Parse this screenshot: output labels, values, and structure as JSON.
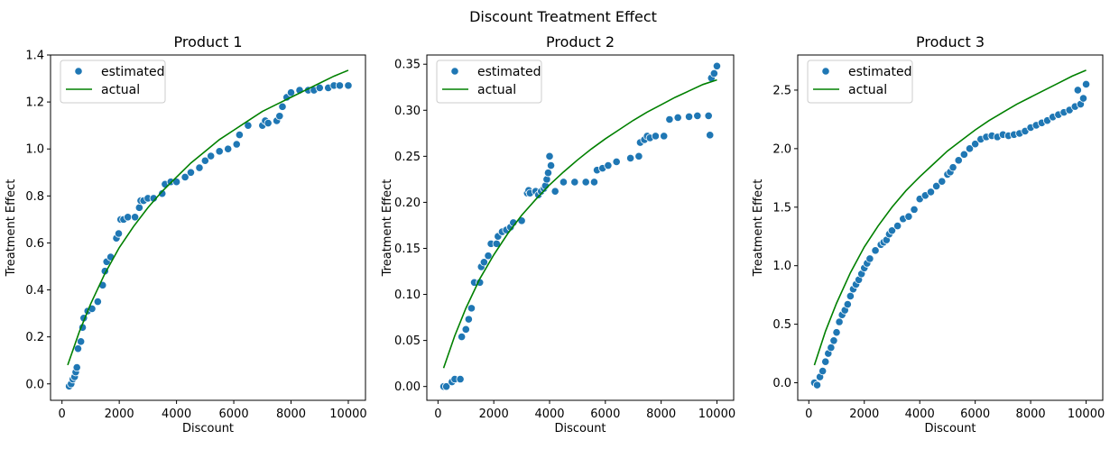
{
  "figure": {
    "title": "Discount Treatment Effect"
  },
  "colors": {
    "estimated": "#1f77b4",
    "estimated_edge": "#ffffff",
    "actual": "#008000",
    "axis": "#000000"
  },
  "chart_data": [
    {
      "type": "scatter",
      "title": "Product 1",
      "xlabel": "Discount",
      "ylabel": "Treatment Effect",
      "xlim": [
        -400,
        10600
      ],
      "ylim": [
        -0.07,
        1.4
      ],
      "xticks": [
        0,
        2000,
        4000,
        6000,
        8000,
        10000
      ],
      "xtick_labels": [
        "0",
        "2000",
        "4000",
        "6000",
        "8000",
        "10000"
      ],
      "yticks": [
        0.0,
        0.2,
        0.4,
        0.6,
        0.8,
        1.0,
        1.2,
        1.4
      ],
      "ytick_labels": [
        "0.0",
        "0.2",
        "0.4",
        "0.6",
        "0.8",
        "1.0",
        "1.2",
        "1.4"
      ],
      "legend": {
        "location": "upper-left",
        "entries": [
          "estimated",
          "actual"
        ]
      },
      "series": [
        {
          "name": "estimated",
          "kind": "scatter",
          "x": [
            250,
            320,
            380,
            440,
            480,
            520,
            560,
            660,
            720,
            760,
            900,
            1050,
            1250,
            1420,
            1500,
            1560,
            1700,
            1900,
            1980,
            2050,
            2150,
            2300,
            2550,
            2700,
            2750,
            2850,
            3000,
            3200,
            3500,
            3600,
            3800,
            4000,
            4300,
            4500,
            4800,
            5000,
            5200,
            5500,
            5800,
            6100,
            6200,
            6500,
            7000,
            7100,
            7200,
            7500,
            7600,
            7700,
            7850,
            8000,
            8300,
            8600,
            8800,
            9000,
            9300,
            9500,
            9700,
            10000
          ],
          "y": [
            -0.01,
            0.0,
            0.02,
            0.03,
            0.05,
            0.07,
            0.15,
            0.18,
            0.24,
            0.28,
            0.31,
            0.32,
            0.35,
            0.42,
            0.48,
            0.52,
            0.54,
            0.62,
            0.64,
            0.7,
            0.7,
            0.71,
            0.71,
            0.75,
            0.78,
            0.78,
            0.79,
            0.79,
            0.81,
            0.85,
            0.86,
            0.86,
            0.88,
            0.9,
            0.92,
            0.95,
            0.97,
            0.99,
            1.0,
            1.02,
            1.06,
            1.1,
            1.1,
            1.12,
            1.11,
            1.12,
            1.14,
            1.18,
            1.22,
            1.24,
            1.25,
            1.25,
            1.25,
            1.26,
            1.26,
            1.27,
            1.27,
            1.27
          ]
        },
        {
          "name": "actual",
          "kind": "line",
          "x": [
            200,
            600,
            1000,
            1500,
            2000,
            2500,
            3000,
            3500,
            4000,
            4500,
            5000,
            5500,
            6000,
            6500,
            7000,
            7500,
            8000,
            8500,
            9000,
            9500,
            10000
          ],
          "y": [
            0.08,
            0.22,
            0.34,
            0.47,
            0.58,
            0.67,
            0.75,
            0.82,
            0.88,
            0.94,
            0.99,
            1.04,
            1.08,
            1.12,
            1.16,
            1.19,
            1.22,
            1.25,
            1.28,
            1.31,
            1.335
          ]
        }
      ]
    },
    {
      "type": "scatter",
      "title": "Product 2",
      "xlabel": "Discount",
      "ylabel": "Treatment Effect",
      "xlim": [
        -400,
        10600
      ],
      "ylim": [
        -0.015,
        0.36
      ],
      "xticks": [
        0,
        2000,
        4000,
        6000,
        8000,
        10000
      ],
      "xtick_labels": [
        "0",
        "2000",
        "4000",
        "6000",
        "8000",
        "10000"
      ],
      "yticks": [
        0.0,
        0.05,
        0.1,
        0.15,
        0.2,
        0.25,
        0.3,
        0.35
      ],
      "ytick_labels": [
        "0.00",
        "0.05",
        "0.10",
        "0.15",
        "0.20",
        "0.25",
        "0.30",
        "0.35"
      ],
      "legend": {
        "location": "upper-left",
        "entries": [
          "estimated",
          "actual"
        ]
      },
      "series": [
        {
          "name": "estimated",
          "kind": "scatter",
          "x": [
            200,
            300,
            500,
            600,
            800,
            850,
            1000,
            1100,
            1200,
            1300,
            1500,
            1550,
            1650,
            1800,
            1900,
            2100,
            2150,
            2300,
            2450,
            2600,
            2700,
            3000,
            3200,
            3250,
            3300,
            3500,
            3600,
            3700,
            3800,
            3850,
            3900,
            3950,
            4000,
            4050,
            4200,
            4500,
            4900,
            5300,
            5600,
            5700,
            5900,
            6100,
            6400,
            6900,
            7200,
            7250,
            7400,
            7500,
            7600,
            7800,
            8100,
            8300,
            8600,
            9000,
            9300,
            9700,
            9750,
            9800,
            9900,
            10000
          ],
          "y": [
            0.0,
            0.0,
            0.005,
            0.008,
            0.008,
            0.054,
            0.062,
            0.073,
            0.085,
            0.113,
            0.113,
            0.13,
            0.135,
            0.142,
            0.155,
            0.155,
            0.163,
            0.168,
            0.17,
            0.173,
            0.178,
            0.18,
            0.21,
            0.213,
            0.21,
            0.212,
            0.208,
            0.212,
            0.215,
            0.218,
            0.225,
            0.232,
            0.25,
            0.24,
            0.212,
            0.222,
            0.222,
            0.222,
            0.222,
            0.235,
            0.237,
            0.24,
            0.244,
            0.248,
            0.25,
            0.265,
            0.268,
            0.272,
            0.27,
            0.272,
            0.272,
            0.29,
            0.292,
            0.293,
            0.294,
            0.294,
            0.273,
            0.335,
            0.34,
            0.348
          ]
        },
        {
          "name": "actual",
          "kind": "line",
          "x": [
            200,
            600,
            1000,
            1500,
            2000,
            2500,
            3000,
            3500,
            4000,
            4500,
            5000,
            5500,
            6000,
            6500,
            7000,
            7500,
            8000,
            8500,
            9000,
            9500,
            10000
          ],
          "y": [
            0.02,
            0.055,
            0.085,
            0.117,
            0.143,
            0.166,
            0.186,
            0.203,
            0.219,
            0.233,
            0.246,
            0.258,
            0.269,
            0.279,
            0.289,
            0.298,
            0.306,
            0.314,
            0.321,
            0.328,
            0.333
          ]
        }
      ]
    },
    {
      "type": "scatter",
      "title": "Product 3",
      "xlabel": "Discount",
      "ylabel": "Treatment Effect",
      "xlim": [
        -400,
        10600
      ],
      "ylim": [
        -0.15,
        2.8
      ],
      "xticks": [
        0,
        2000,
        4000,
        6000,
        8000,
        10000
      ],
      "xtick_labels": [
        "0",
        "2000",
        "4000",
        "6000",
        "8000",
        "10000"
      ],
      "yticks": [
        0.0,
        0.5,
        1.0,
        1.5,
        2.0,
        2.5
      ],
      "ytick_labels": [
        "0.0",
        "0.5",
        "1.0",
        "1.5",
        "2.0",
        "2.5"
      ],
      "legend": {
        "location": "upper-left",
        "entries": [
          "estimated",
          "actual"
        ]
      },
      "series": [
        {
          "name": "estimated",
          "kind": "scatter",
          "x": [
            200,
            300,
            400,
            500,
            600,
            700,
            800,
            900,
            1000,
            1100,
            1200,
            1300,
            1400,
            1500,
            1600,
            1700,
            1800,
            1900,
            2000,
            2100,
            2200,
            2400,
            2600,
            2700,
            2800,
            2900,
            3000,
            3200,
            3400,
            3600,
            3800,
            4000,
            4200,
            4400,
            4600,
            4800,
            5000,
            5100,
            5200,
            5400,
            5600,
            5800,
            6000,
            6200,
            6400,
            6600,
            6800,
            7000,
            7200,
            7400,
            7600,
            7800,
            8000,
            8200,
            8400,
            8600,
            8800,
            9000,
            9200,
            9400,
            9600,
            9700,
            9800,
            9900,
            10000
          ],
          "y": [
            0.0,
            -0.02,
            0.05,
            0.1,
            0.18,
            0.25,
            0.3,
            0.36,
            0.43,
            0.52,
            0.58,
            0.62,
            0.67,
            0.74,
            0.8,
            0.84,
            0.88,
            0.93,
            0.98,
            1.02,
            1.06,
            1.13,
            1.18,
            1.2,
            1.22,
            1.27,
            1.3,
            1.34,
            1.4,
            1.42,
            1.48,
            1.57,
            1.6,
            1.63,
            1.68,
            1.72,
            1.78,
            1.8,
            1.84,
            1.9,
            1.95,
            2.0,
            2.04,
            2.08,
            2.1,
            2.11,
            2.1,
            2.12,
            2.11,
            2.12,
            2.13,
            2.15,
            2.18,
            2.2,
            2.22,
            2.24,
            2.27,
            2.29,
            2.31,
            2.33,
            2.36,
            2.5,
            2.38,
            2.43,
            2.55
          ]
        },
        {
          "name": "actual",
          "kind": "line",
          "x": [
            200,
            600,
            1000,
            1500,
            2000,
            2500,
            3000,
            3500,
            4000,
            4500,
            5000,
            5500,
            6000,
            6500,
            7000,
            7500,
            8000,
            8500,
            9000,
            9500,
            10000
          ],
          "y": [
            0.15,
            0.44,
            0.68,
            0.94,
            1.16,
            1.34,
            1.5,
            1.64,
            1.76,
            1.87,
            1.98,
            2.07,
            2.16,
            2.24,
            2.31,
            2.38,
            2.44,
            2.5,
            2.56,
            2.62,
            2.67
          ]
        }
      ]
    }
  ]
}
